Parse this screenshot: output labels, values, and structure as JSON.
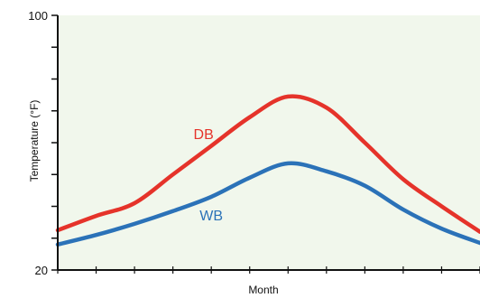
{
  "colors": {
    "plot_background": "#f1f7ec",
    "axis": "#111111",
    "db_series": "#e5332a",
    "wb_series": "#2b72b8"
  },
  "chart_data": {
    "type": "line",
    "title": "",
    "xlabel": "Month",
    "ylabel": "Temperature (°F)",
    "ylim": [
      20,
      100
    ],
    "y_tick_labels": [
      "20",
      "100"
    ],
    "y_tick_values": [
      20,
      30,
      40,
      50,
      60,
      70,
      80,
      90,
      100
    ],
    "xlim": [
      0,
      11
    ],
    "x_tick_values": [
      0,
      1,
      2,
      3,
      4,
      5,
      6,
      7,
      8,
      9,
      10,
      11
    ],
    "grid": false,
    "series": [
      {
        "name": "DB",
        "color": "#e5332a",
        "x": [
          0,
          1,
          2,
          3,
          4,
          5,
          6,
          7,
          8,
          9,
          10,
          11
        ],
        "values": [
          32.5,
          37,
          41,
          50,
          59,
          68,
          74.5,
          71,
          60,
          48.5,
          40,
          32
        ]
      },
      {
        "name": "WB",
        "color": "#2b72b8",
        "x": [
          0,
          1,
          2,
          3,
          4,
          5,
          6,
          7,
          8,
          9,
          10,
          11
        ],
        "values": [
          28,
          31,
          34.5,
          38.5,
          43,
          49,
          53.5,
          51,
          46.5,
          39,
          33,
          28.5
        ]
      }
    ]
  }
}
